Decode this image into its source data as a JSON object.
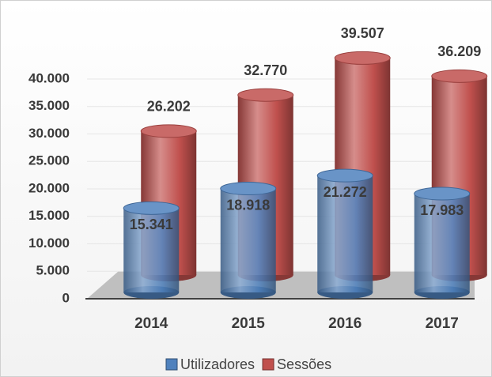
{
  "chart_data": {
    "type": "bar",
    "categories": [
      "2014",
      "2015",
      "2016",
      "2017"
    ],
    "series": [
      {
        "name": "Utilizadores",
        "color": "#4f81bd",
        "values": [
          15341,
          18918,
          21272,
          17983
        ],
        "value_labels": [
          "15.341",
          "18.918",
          "21.272",
          "17.983"
        ]
      },
      {
        "name": "Sessões",
        "color": "#c0504d",
        "values": [
          26202,
          32770,
          39507,
          36209
        ],
        "value_labels": [
          "26.202",
          "32.770",
          "39.507",
          "36.209"
        ]
      }
    ],
    "ylim": [
      0,
      40000
    ],
    "yticks": [
      0,
      {
        "value": 5000,
        "label": "5.000"
      },
      {
        "value": 10000,
        "label": "10.000"
      },
      {
        "value": 15000,
        "label": "15.000"
      },
      {
        "value": 20000,
        "label": "20.000"
      },
      {
        "value": 25000,
        "label": "25.000"
      },
      {
        "value": 30000,
        "label": "30.000"
      },
      {
        "value": 35000,
        "label": "35.000"
      },
      {
        "value": 40000,
        "label": "40.000"
      }
    ],
    "grid": true,
    "legend": "bottom"
  }
}
